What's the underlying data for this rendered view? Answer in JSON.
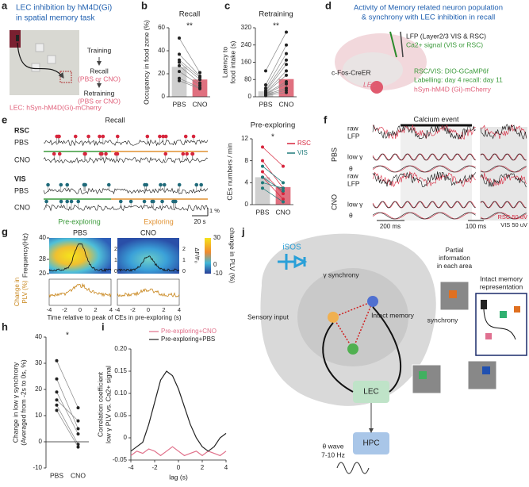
{
  "panel_labels": [
    "a",
    "b",
    "c",
    "d",
    "e",
    "f",
    "g",
    "h",
    "i",
    "j"
  ],
  "panel_a": {
    "title_lines": [
      "LEC inhibition by hM4D(Gi)",
      "in spatial memory task"
    ],
    "steps": [
      "Training",
      "Recall",
      "(PBS or CNO)",
      "Retraining",
      "(PBS or CNO)"
    ],
    "footer": "LEC: hSyn-hM4D(Gi)-mCherry"
  },
  "panel_d": {
    "title_lines": [
      "Activity of Memory related neuron population",
      "& synchrony with LEC inhibition in recall"
    ],
    "labels": [
      "LFP (Layer2/3 VIS & RSC)",
      "Ca2+ signal (VIS or RSC)",
      "c-Fos-CreER",
      "LEC",
      "RSC/VIS: DIO-GCaMP6f",
      "Labelling: day 4 recall: day 11",
      "hSyn-hM4D (Gi)-mCherry"
    ]
  },
  "panel_e": {
    "title": "Recall",
    "rows": [
      "RSC",
      "PBS",
      "CNO",
      "VIS",
      "PBS",
      "CNO"
    ],
    "phases": [
      "Pre-exploring",
      "Exploring"
    ],
    "scales": [
      "1 %",
      "20 s"
    ]
  },
  "panel_f": {
    "header": "Calcium event",
    "groups": [
      "PBS",
      "CNO"
    ],
    "rows": [
      "raw",
      "LFP",
      "low γ",
      "θ"
    ],
    "scales": [
      "200 ms",
      "100 ms"
    ],
    "legend": [
      "RSC 50 uV",
      "VIS 50 uV"
    ]
  },
  "panel_g": {
    "titles": [
      "PBS",
      "CNO"
    ],
    "ylabel": "Frequency(Hz)",
    "yticks": [
      20,
      28,
      40
    ],
    "colorbar_label": "change in PLV (%)",
    "colorbar_ticks": [
      30,
      0,
      -10
    ],
    "df_label": "ΔF/F₀",
    "df_ticks": [
      0,
      1,
      2
    ],
    "lower_ylabel": [
      "Change in",
      "PLV (%)"
    ],
    "xticks": [
      -4,
      -2,
      0,
      2,
      4
    ],
    "xlabel": "Time relative to peak of CEs in pre-exploring (s)"
  },
  "panel_j": {
    "labels": [
      "iSOS",
      "γ synchrony",
      "Sensory input",
      "Intact memory",
      "Partial",
      "information",
      "in each area",
      "synchrony",
      "Intact memory",
      "representation",
      "LEC",
      "HPC",
      "θ wave",
      "7-10 Hz"
    ]
  },
  "chart_data": [
    {
      "type": "bar",
      "title": "Recall",
      "ylabel": [
        "Occupancy in food zone (%)"
      ],
      "categories": [
        "PBS",
        "CNO"
      ],
      "values": [
        26,
        15
      ],
      "colors": [
        "#cfcfcf",
        "#e0707f"
      ],
      "pairs": [
        [
          51,
          21
        ],
        [
          37,
          18
        ],
        [
          32,
          17
        ],
        [
          30,
          15
        ],
        [
          27,
          12
        ],
        [
          22,
          10
        ],
        [
          16,
          8
        ],
        [
          14,
          7
        ]
      ],
      "ylim": [
        0,
        60
      ],
      "yticks": [
        0,
        20,
        40,
        60
      ],
      "annotation": "**"
    },
    {
      "type": "bar",
      "title": "Retraining",
      "ylabel": [
        "Latency to",
        "food intake (s)"
      ],
      "categories": [
        "PBS",
        "CNO"
      ],
      "values": [
        25,
        82
      ],
      "colors": [
        "#cfcfcf",
        "#e0707f"
      ],
      "pairs": [
        [
          5,
          20
        ],
        [
          8,
          30
        ],
        [
          10,
          40
        ],
        [
          12,
          60
        ],
        [
          15,
          70
        ],
        [
          18,
          100
        ],
        [
          20,
          120
        ],
        [
          25,
          150
        ],
        [
          30,
          170
        ],
        [
          40,
          200
        ],
        [
          55,
          240
        ],
        [
          120,
          300
        ]
      ],
      "ylim": [
        0,
        320
      ],
      "yticks": [
        0,
        80,
        160,
        240,
        320
      ],
      "annotation": "**"
    },
    {
      "type": "bar",
      "title": "Pre-exploring",
      "ylabel": [
        "CEs numbers / min"
      ],
      "categories": [
        "PBS",
        "CNO"
      ],
      "values": [
        5,
        3.2
      ],
      "colors": [
        "#cfcfcf",
        "#e0707f"
      ],
      "series": [
        {
          "name": "RSC",
          "color": "#d7263d",
          "pairs": [
            [
              10.5,
              7
            ],
            [
              8,
              3
            ],
            [
              6,
              2
            ],
            [
              5,
              1
            ]
          ]
        },
        {
          "name": "VIS",
          "color": "#1f7a7a",
          "pairs": [
            [
              7,
              4
            ],
            [
              5,
              2.5
            ],
            [
              4,
              3
            ],
            [
              3,
              0.5
            ]
          ]
        }
      ],
      "ylim": [
        0,
        12
      ],
      "yticks": [
        0,
        4,
        8,
        12
      ],
      "annotation": "*"
    },
    {
      "type": "bar",
      "ylabel": [
        "Change in low γ synchrony",
        "(Averaged from -2s to 0s, %)"
      ],
      "categories": [
        "PBS",
        "CNO"
      ],
      "pairs": [
        [
          31,
          13
        ],
        [
          24,
          5
        ],
        [
          19,
          3
        ],
        [
          16,
          8
        ],
        [
          14,
          -1
        ],
        [
          12,
          -2
        ]
      ],
      "ylim": [
        -10,
        40
      ],
      "yticks": [
        -10,
        0,
        10,
        20,
        30,
        40
      ],
      "annotation": "*"
    },
    {
      "type": "line",
      "ylabel": [
        "Correlation coefficient",
        "low γ PLV vs. Ca2+ signal"
      ],
      "xlabel": "lag (s)",
      "x": [
        -4,
        -3.5,
        -3,
        -2.5,
        -2,
        -1.5,
        -1,
        -0.5,
        0,
        0.5,
        1,
        1.5,
        2,
        2.5,
        3,
        3.5,
        4
      ],
      "series": [
        {
          "name": "Pre-exploring+CNO",
          "color": "#e0708a",
          "values": [
            -0.04,
            -0.03,
            -0.035,
            -0.025,
            -0.03,
            -0.04,
            -0.03,
            -0.02,
            -0.03,
            -0.04,
            -0.035,
            -0.03,
            -0.04,
            -0.03,
            -0.035,
            -0.04,
            -0.03
          ]
        },
        {
          "name": "Pre-exploring+PBS",
          "color": "#222222",
          "values": [
            -0.03,
            -0.02,
            -0.01,
            0.03,
            0.08,
            0.13,
            0.15,
            0.14,
            0.11,
            0.07,
            0.03,
            0.0,
            -0.02,
            -0.03,
            -0.02,
            0.0,
            0.01
          ]
        }
      ],
      "xlim": [
        -4,
        4
      ],
      "xticks": [
        -4,
        -2,
        0,
        2,
        4
      ],
      "ylim": [
        -0.05,
        0.2
      ],
      "yticks": [
        -0.05,
        0,
        0.05,
        {
          "value": 0.1,
          "label": "0.10"
        },
        0.15,
        {
          "value": 0.2,
          "label": "0.20"
        }
      ]
    }
  ]
}
